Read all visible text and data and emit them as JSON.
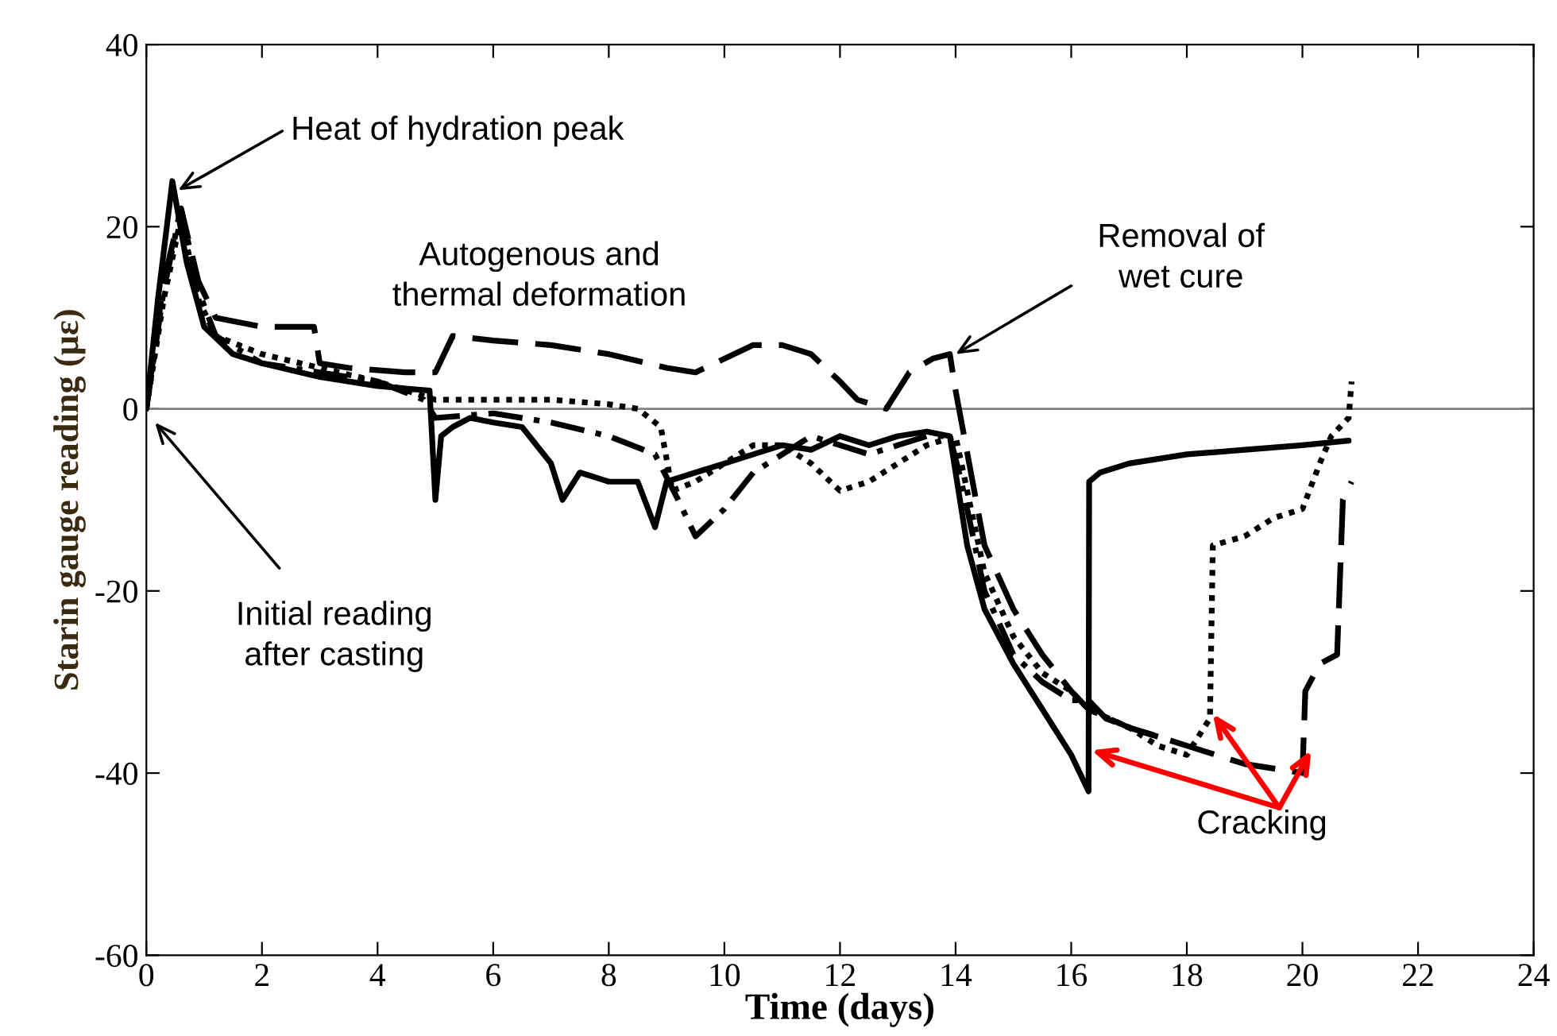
{
  "chart_data": {
    "type": "line",
    "xlabel": "Time (days)",
    "ylabel": "Starin gauge reading (με)",
    "xlim": [
      0,
      24
    ],
    "ylim": [
      -60,
      40
    ],
    "xticks": [
      0,
      2,
      4,
      6,
      8,
      10,
      12,
      14,
      16,
      18,
      20,
      22,
      24
    ],
    "yticks": [
      -60,
      -40,
      -20,
      0,
      20,
      40
    ],
    "grid": false,
    "ref_lines": [
      {
        "axis": "y",
        "value": 0,
        "color": "#808080"
      }
    ],
    "series": [
      {
        "color": "#000000",
        "line_style": "solid",
        "x": [
          0,
          0.2,
          0.45,
          0.7,
          1,
          1.5,
          2,
          3,
          4,
          4.9,
          5.0,
          5.1,
          5.3,
          5.6,
          6,
          6.5,
          7,
          7.2,
          7.5,
          8,
          8.5,
          8.8,
          9,
          9.5,
          10,
          10.5,
          11,
          11.5,
          12,
          12.5,
          13,
          13.5,
          13.9,
          14.2,
          14.5,
          15,
          15.5,
          16,
          16.3,
          16.31,
          16.5,
          17,
          18,
          19,
          20,
          20.8
        ],
        "values": [
          0,
          12,
          25,
          16,
          9,
          6,
          5,
          3.5,
          2.5,
          2,
          -10,
          -3,
          -2,
          -1,
          -1.5,
          -2,
          -6,
          -10,
          -7,
          -8,
          -8,
          -13,
          -8,
          -7,
          -6,
          -5,
          -4,
          -4.5,
          -3,
          -4,
          -3,
          -2.5,
          -3,
          -15,
          -22,
          -28,
          -33,
          -38,
          -42,
          -8,
          -7,
          -6,
          -5,
          -4.5,
          -4,
          -3.5
        ]
      },
      {
        "color": "#000000",
        "line_style": "dashed",
        "x": [
          0,
          0.3,
          0.6,
          0.9,
          1.2,
          2,
          2.9,
          3.0,
          3.5,
          4.5,
          5,
          5.3,
          6,
          7,
          8,
          9,
          9.5,
          10,
          10.5,
          11,
          11.5,
          12,
          12.3,
          12.8,
          13.2,
          13.6,
          13.9,
          14.0,
          14.5,
          15,
          15.5,
          16,
          16.3,
          17,
          18,
          19,
          20,
          20.05,
          20.3,
          20.6,
          20.7,
          20.85
        ],
        "values": [
          0,
          14,
          22,
          14,
          10,
          9,
          9,
          5,
          4.5,
          4,
          4,
          8,
          7.5,
          7,
          6,
          4.5,
          4,
          5.5,
          7,
          7,
          6,
          3,
          1,
          0,
          4,
          5.5,
          6,
          2,
          -15,
          -22,
          -27,
          -31,
          -33,
          -35,
          -37,
          -39,
          -40,
          -31,
          -28,
          -27,
          -10,
          -8
        ]
      },
      {
        "color": "#000000",
        "line_style": "dotted",
        "x": [
          0,
          0.3,
          0.6,
          0.9,
          1.2,
          2,
          3,
          4,
          5,
          6,
          7,
          8,
          8.5,
          8.9,
          9.1,
          9.5,
          10,
          10.5,
          11,
          11.5,
          12,
          12.5,
          13,
          13.5,
          14,
          14.5,
          15,
          15.5,
          16,
          16.3,
          17,
          17.5,
          18,
          18.4,
          18.45,
          19,
          19.5,
          20,
          20.3,
          20.5,
          20.8,
          20.85
        ],
        "values": [
          0,
          12,
          21,
          12,
          8,
          6,
          4.5,
          3,
          1,
          1,
          1,
          0.5,
          0,
          -2,
          -9,
          -8,
          -6,
          -4,
          -4,
          -6,
          -9,
          -8,
          -6,
          -4,
          -3,
          -18,
          -25,
          -29,
          -31,
          -33,
          -35,
          -37,
          -38,
          -34,
          -15,
          -14,
          -12,
          -11,
          -6,
          -3,
          -1,
          3
        ]
      },
      {
        "color": "#000000",
        "line_style": "dashdot",
        "x": [
          0,
          0.3,
          0.6,
          0.9,
          1.2,
          2,
          3,
          4,
          4.8,
          5,
          6,
          7,
          8,
          8.8,
          9.2,
          9.5,
          10,
          10.5,
          11,
          11.5,
          12,
          12.5,
          13,
          13.5,
          13.9,
          14.1,
          14.5,
          15,
          15.5,
          16,
          16.3,
          16.6,
          17,
          17.5
        ],
        "values": [
          0,
          13,
          22,
          13,
          8,
          5,
          4,
          3,
          1,
          -1,
          -0.5,
          -1.5,
          -3,
          -5,
          -10,
          -14,
          -11,
          -7,
          -5,
          -3,
          -4,
          -5,
          -4,
          -3,
          -3,
          -8,
          -20,
          -27,
          -30,
          -32,
          -32,
          -34,
          -35,
          -36
        ]
      }
    ],
    "annotations": [
      {
        "text": "Heat of hydration peak",
        "x": 0.55,
        "y": 24
      },
      "Autogenous and\nthermal deformation",
      {
        "text": "Removal of\nwet cure",
        "x": 14.0,
        "y": 6
      },
      "Initial reading\nafter casting",
      {
        "text": "Cracking",
        "x": 16.35,
        "y": -37.5
      }
    ]
  }
}
